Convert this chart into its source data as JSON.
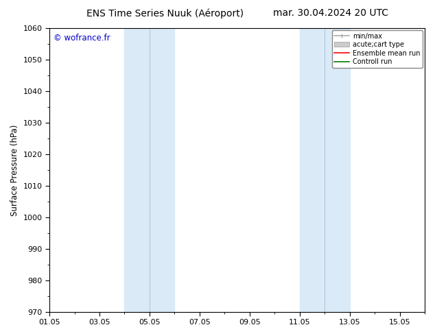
{
  "title_left": "ENS Time Series Nuuk (Aéroport)",
  "title_right": "mar. 30.04.2024 20 UTC",
  "ylabel": "Surface Pressure (hPa)",
  "ylim": [
    970,
    1060
  ],
  "yticks": [
    970,
    980,
    990,
    1000,
    1010,
    1020,
    1030,
    1040,
    1050,
    1060
  ],
  "xtick_labels": [
    "01.05",
    "03.05",
    "05.05",
    "07.05",
    "09.05",
    "11.05",
    "13.05",
    "15.05"
  ],
  "xtick_positions": [
    0,
    2,
    4,
    6,
    8,
    10,
    12,
    14
  ],
  "xlim": [
    0,
    15
  ],
  "shaded_bands": [
    {
      "x_start": 3.0,
      "x_end": 4.0
    },
    {
      "x_start": 4.0,
      "x_end": 5.0
    },
    {
      "x_start": 10.0,
      "x_end": 11.0
    },
    {
      "x_start": 11.0,
      "x_end": 12.0
    }
  ],
  "shaded_color": "#daeaf7",
  "band_divider_color": "#aec8df",
  "watermark": "© wofrance.fr",
  "watermark_color": "#0000cc",
  "background_color": "#ffffff",
  "plot_bg_color": "#ffffff",
  "legend_items": [
    {
      "label": "min/max",
      "color": "#aaaaaa",
      "lw": 1.2,
      "style": "line_with_caps"
    },
    {
      "label": "acute;cart type",
      "color": "#cccccc",
      "lw": 8,
      "style": "thick"
    },
    {
      "label": "Ensemble mean run",
      "color": "#ff0000",
      "lw": 1.2,
      "style": "line"
    },
    {
      "label": "Controll run",
      "color": "#008000",
      "lw": 1.2,
      "style": "line"
    }
  ],
  "title_fontsize": 10,
  "tick_fontsize": 8,
  "ylabel_fontsize": 8.5,
  "watermark_fontsize": 8.5
}
